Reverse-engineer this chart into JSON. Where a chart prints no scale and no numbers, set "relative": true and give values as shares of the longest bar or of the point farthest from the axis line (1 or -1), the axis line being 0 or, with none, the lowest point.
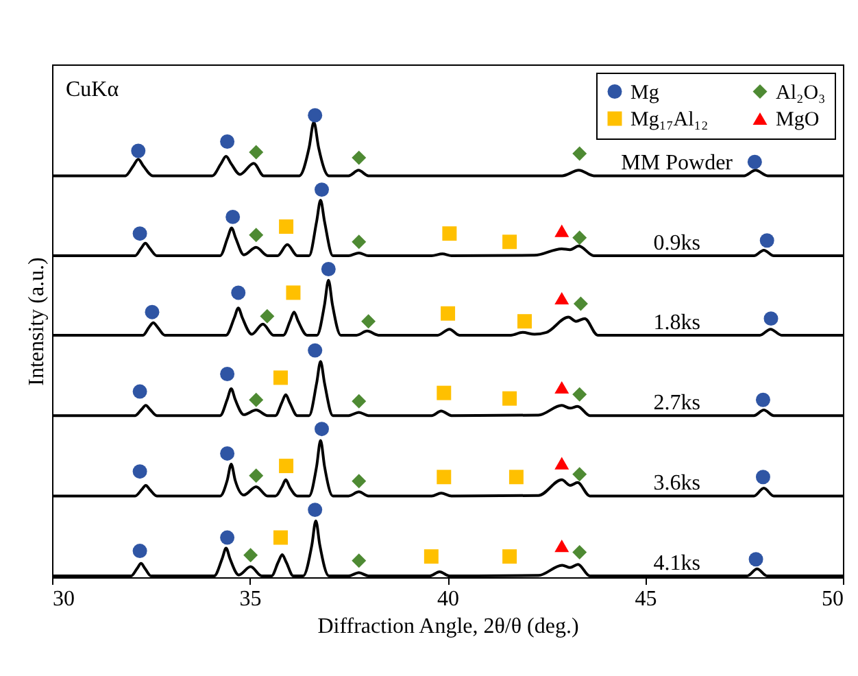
{
  "chart_data": {
    "type": "line",
    "relative": true,
    "xlabel": "Diffraction Angle, 2θ/θ (deg.)",
    "ylabel": "Intensity (a.u.)",
    "xlim": [
      30,
      50
    ],
    "xticks": [
      30,
      35,
      40,
      45,
      50
    ],
    "legend": "top right",
    "annotations": [
      "CuKα"
    ],
    "series": [
      {
        "name": "MM Powder",
        "marker": "none",
        "color": "#000000",
        "x": [
          30,
          31.85,
          32.05,
          32.18,
          32.31,
          32.55,
          34.05,
          34.27,
          34.4,
          34.53,
          34.75,
          35.1,
          35.35,
          36.25,
          36.5,
          36.62,
          36.74,
          37.0,
          37.5,
          37.75,
          38.0,
          42.9,
          43.32,
          43.7,
          47.5,
          47.79,
          48.1,
          50
        ],
        "values": [
          0.869,
          0.869,
          0.89,
          0.905,
          0.89,
          0.869,
          0.869,
          0.895,
          0.911,
          0.895,
          0.872,
          0.896,
          0.869,
          0.869,
          0.93,
          0.985,
          0.93,
          0.869,
          0.869,
          0.881,
          0.869,
          0.869,
          0.881,
          0.869,
          0.869,
          0.881,
          0.869,
          0.869
        ]
      },
      {
        "name": "0.9ks",
        "marker": "none",
        "color": "#000000",
        "x": [
          30,
          32.1,
          32.25,
          32.36,
          32.47,
          32.65,
          34.25,
          34.44,
          34.54,
          34.64,
          34.85,
          35.16,
          35.45,
          35.7,
          35.95,
          36.2,
          36.5,
          36.69,
          36.79,
          36.89,
          37.1,
          37.5,
          37.76,
          38.0,
          39.6,
          39.87,
          40.1,
          42.2,
          42.89,
          43.1,
          43.32,
          43.7,
          47.75,
          48.0,
          48.25,
          50
        ],
        "values": [
          0.696,
          0.696,
          0.712,
          0.723,
          0.712,
          0.696,
          0.696,
          0.735,
          0.756,
          0.735,
          0.698,
          0.714,
          0.696,
          0.696,
          0.72,
          0.696,
          0.696,
          0.77,
          0.816,
          0.77,
          0.696,
          0.696,
          0.702,
          0.696,
          0.696,
          0.7,
          0.696,
          0.697,
          0.711,
          0.709,
          0.717,
          0.696,
          0.696,
          0.708,
          0.696,
          0.696
        ]
      },
      {
        "name": "1.8ks",
        "marker": "none",
        "color": "#000000",
        "x": [
          30,
          32.3,
          32.45,
          32.56,
          32.67,
          32.85,
          34.4,
          34.61,
          34.71,
          34.81,
          35.05,
          35.33,
          35.6,
          35.85,
          36.02,
          36.12,
          36.22,
          36.45,
          36.7,
          36.89,
          36.99,
          37.09,
          37.3,
          37.7,
          37.97,
          38.25,
          39.75,
          40.05,
          40.3,
          41.6,
          41.9,
          42.2,
          42.5,
          43.06,
          43.25,
          43.47,
          43.8,
          47.9,
          48.17,
          48.45,
          50
        ],
        "values": [
          0.524,
          0.524,
          0.541,
          0.551,
          0.541,
          0.524,
          0.524,
          0.562,
          0.583,
          0.562,
          0.526,
          0.548,
          0.524,
          0.524,
          0.555,
          0.574,
          0.555,
          0.524,
          0.524,
          0.59,
          0.643,
          0.59,
          0.524,
          0.524,
          0.533,
          0.524,
          0.524,
          0.537,
          0.524,
          0.524,
          0.53,
          0.526,
          0.53,
          0.563,
          0.554,
          0.56,
          0.524,
          0.524,
          0.537,
          0.524,
          0.524
        ]
      },
      {
        "name": "2.7ks",
        "marker": "none",
        "color": "#000000",
        "x": [
          30,
          32.1,
          32.27,
          32.37,
          32.47,
          32.65,
          34.25,
          34.43,
          34.53,
          34.63,
          34.85,
          35.16,
          35.45,
          35.65,
          35.81,
          35.91,
          36.01,
          36.2,
          36.5,
          36.69,
          36.79,
          36.89,
          37.1,
          37.5,
          37.76,
          38.0,
          39.6,
          39.84,
          40.1,
          42.3,
          42.89,
          43.1,
          43.29,
          43.6,
          47.75,
          48.0,
          48.25,
          50
        ],
        "values": [
          0.35,
          0.35,
          0.364,
          0.372,
          0.364,
          0.35,
          0.35,
          0.385,
          0.408,
          0.385,
          0.352,
          0.362,
          0.35,
          0.35,
          0.378,
          0.395,
          0.378,
          0.35,
          0.35,
          0.42,
          0.467,
          0.42,
          0.35,
          0.35,
          0.357,
          0.35,
          0.35,
          0.36,
          0.35,
          0.351,
          0.372,
          0.366,
          0.37,
          0.35,
          0.35,
          0.362,
          0.35,
          0.35
        ]
      },
      {
        "name": "3.6ks",
        "marker": "none",
        "color": "#000000",
        "x": [
          30,
          32.1,
          32.27,
          32.37,
          32.47,
          32.65,
          34.25,
          34.43,
          34.53,
          34.63,
          34.85,
          35.16,
          35.45,
          35.65,
          35.81,
          35.91,
          36.01,
          36.2,
          36.5,
          36.69,
          36.79,
          36.89,
          37.1,
          37.5,
          37.76,
          38.0,
          39.6,
          39.84,
          40.1,
          42.3,
          42.89,
          43.1,
          43.29,
          43.6,
          47.75,
          48.0,
          48.25,
          50
        ],
        "values": [
          0.176,
          0.176,
          0.19,
          0.199,
          0.19,
          0.176,
          0.176,
          0.21,
          0.245,
          0.21,
          0.178,
          0.196,
          0.176,
          0.176,
          0.195,
          0.211,
          0.195,
          0.176,
          0.176,
          0.24,
          0.296,
          0.24,
          0.176,
          0.176,
          0.185,
          0.176,
          0.176,
          0.182,
          0.176,
          0.177,
          0.211,
          0.199,
          0.205,
          0.176,
          0.176,
          0.193,
          0.176,
          0.176
        ]
      },
      {
        "name": "4.1ks",
        "marker": "none",
        "color": "#000000",
        "x": [
          30,
          32.0,
          32.15,
          32.25,
          32.35,
          32.5,
          34.1,
          34.3,
          34.4,
          34.5,
          34.72,
          35.02,
          35.3,
          35.55,
          35.72,
          35.82,
          35.92,
          36.1,
          36.35,
          36.57,
          36.67,
          36.77,
          37.0,
          37.5,
          37.76,
          38.0,
          39.55,
          39.8,
          40.05,
          42.3,
          42.9,
          43.1,
          43.3,
          43.6,
          47.58,
          47.83,
          48.08,
          50
        ],
        "values": [
          0.003,
          0.003,
          0.019,
          0.03,
          0.019,
          0.003,
          0.003,
          0.04,
          0.063,
          0.04,
          0.005,
          0.023,
          0.003,
          0.003,
          0.033,
          0.049,
          0.033,
          0.003,
          0.003,
          0.07,
          0.122,
          0.07,
          0.003,
          0.003,
          0.01,
          0.003,
          0.003,
          0.012,
          0.003,
          0.004,
          0.026,
          0.021,
          0.028,
          0.003,
          0.003,
          0.018,
          0.003,
          0.003
        ]
      },
      {
        "name": "Mg",
        "type": "scatter",
        "marker": "circle",
        "color": "#2f55a4",
        "x": [
          32.18,
          34.43,
          36.65,
          47.77,
          32.22,
          34.57,
          36.82,
          48.08,
          32.53,
          34.71,
          36.99,
          48.18,
          32.22,
          34.43,
          36.65,
          47.98,
          32.22,
          34.43,
          36.82,
          47.98,
          32.22,
          34.43,
          36.65,
          47.8
        ],
        "values": [
          0.923,
          0.943,
          1.0,
          0.899,
          0.744,
          0.78,
          0.839,
          0.729,
          0.574,
          0.616,
          0.667,
          0.56,
          0.402,
          0.44,
          0.491,
          0.384,
          0.229,
          0.268,
          0.321,
          0.217,
          0.057,
          0.086,
          0.146,
          0.039
        ]
      },
      {
        "name": "Mg₁₇Al₁₂",
        "type": "scatter",
        "marker": "square",
        "color": "#ffc000",
        "x": [
          35.92,
          40.05,
          41.57,
          36.1,
          40.01,
          41.95,
          35.78,
          39.91,
          41.57,
          35.92,
          39.91,
          41.74,
          35.78,
          39.59,
          41.57
        ],
        "values": [
          0.759,
          0.744,
          0.726,
          0.616,
          0.571,
          0.554,
          0.432,
          0.399,
          0.387,
          0.241,
          0.217,
          0.217,
          0.086,
          0.045,
          0.045
        ]
      },
      {
        "name": "Al₂O₃",
        "type": "scatter",
        "marker": "diamond",
        "color": "#4e8a33",
        "x": [
          35.16,
          37.76,
          43.34,
          35.16,
          37.76,
          43.34,
          35.44,
          38.0,
          43.37,
          35.16,
          37.76,
          43.34,
          35.16,
          37.76,
          43.34,
          35.02,
          37.76,
          43.34
        ],
        "values": [
          0.92,
          0.908,
          0.917,
          0.741,
          0.726,
          0.735,
          0.565,
          0.554,
          0.592,
          0.384,
          0.381,
          0.396,
          0.22,
          0.208,
          0.223,
          0.048,
          0.036,
          0.054
        ]
      },
      {
        "name": "MgO",
        "type": "scatter",
        "marker": "triangle",
        "color": "#ff0000",
        "x": [
          42.89,
          42.89,
          42.89,
          42.89,
          42.89
        ],
        "values": [
          0.75,
          0.604,
          0.411,
          0.247,
          0.068
        ]
      }
    ]
  }
}
